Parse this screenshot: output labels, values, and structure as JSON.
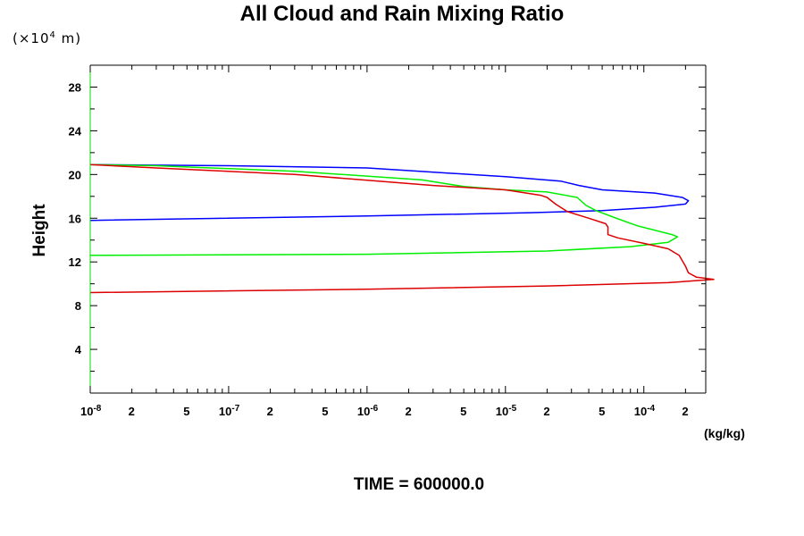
{
  "chart_data": {
    "type": "line",
    "title": "All Cloud and Rain Mixing Ratio",
    "ylabel": "Height",
    "y_unit_prefix": "(×10",
    "y_unit_exponent": "4",
    "y_unit_suffix": " m)",
    "xlabel": "(kg/kg)",
    "footer": "TIME = 600000.0",
    "x_scale": "log",
    "xlim": [
      1e-08,
      0.00028
    ],
    "ylim": [
      0,
      30
    ],
    "y_ticks": [
      {
        "value": 4,
        "label": "4"
      },
      {
        "value": 8,
        "label": "8"
      },
      {
        "value": 12,
        "label": "12"
      },
      {
        "value": 16,
        "label": "16"
      },
      {
        "value": 20,
        "label": "20"
      },
      {
        "value": 24,
        "label": "24"
      },
      {
        "value": 28,
        "label": "28"
      }
    ],
    "x_tick_labels": [
      {
        "value": 1e-08,
        "base": "10",
        "exp": "-8"
      },
      {
        "value": 2e-08,
        "base": "2",
        "exp": ""
      },
      {
        "value": 5e-08,
        "base": "5",
        "exp": ""
      },
      {
        "value": 1e-07,
        "base": "10",
        "exp": "-7"
      },
      {
        "value": 2e-07,
        "base": "2",
        "exp": ""
      },
      {
        "value": 5e-07,
        "base": "5",
        "exp": ""
      },
      {
        "value": 1e-06,
        "base": "10",
        "exp": "-6"
      },
      {
        "value": 2e-06,
        "base": "2",
        "exp": ""
      },
      {
        "value": 5e-06,
        "base": "5",
        "exp": ""
      },
      {
        "value": 1e-05,
        "base": "10",
        "exp": "-5"
      },
      {
        "value": 2e-05,
        "base": "2",
        "exp": ""
      },
      {
        "value": 5e-05,
        "base": "5",
        "exp": ""
      },
      {
        "value": 0.0001,
        "base": "10",
        "exp": "-4"
      },
      {
        "value": 0.0002,
        "base": "2",
        "exp": ""
      }
    ],
    "series": [
      {
        "color": "#0000ff",
        "points": [
          [
            1e-08,
            15.8
          ],
          [
            1e-06,
            16.2
          ],
          [
            1.5e-05,
            16.5
          ],
          [
            5e-05,
            16.7
          ],
          [
            0.00012,
            17.0
          ],
          [
            0.0002,
            17.3
          ],
          [
            0.00021,
            17.6
          ],
          [
            0.00019,
            17.9
          ],
          [
            0.00012,
            18.3
          ],
          [
            5e-05,
            18.6
          ],
          [
            3.4e-05,
            19.0
          ],
          [
            2.5e-05,
            19.4
          ],
          [
            1e-05,
            19.8
          ],
          [
            1e-06,
            20.6
          ],
          [
            1e-07,
            20.8
          ],
          [
            1e-08,
            20.9
          ]
        ]
      },
      {
        "color": "#00ee00",
        "points": [
          [
            1e-08,
            12.6
          ],
          [
            1e-06,
            12.7
          ],
          [
            2e-05,
            13.0
          ],
          [
            8e-05,
            13.4
          ],
          [
            0.00015,
            13.8
          ],
          [
            0.000175,
            14.3
          ],
          [
            0.00016,
            14.5
          ],
          [
            9e-05,
            15.3
          ],
          [
            6e-05,
            16.1
          ],
          [
            4.5e-05,
            16.7
          ],
          [
            3.8e-05,
            17.2
          ],
          [
            3.3e-05,
            17.9
          ],
          [
            2e-05,
            18.4
          ],
          [
            1e-05,
            18.6
          ],
          [
            5e-06,
            18.9
          ],
          [
            2.5e-06,
            19.5
          ],
          [
            3e-07,
            20.3
          ],
          [
            3e-08,
            20.8
          ],
          [
            1e-08,
            20.9
          ]
        ]
      },
      {
        "color": "#dd0000",
        "points": [
          [
            1e-08,
            9.2
          ],
          [
            1e-06,
            9.5
          ],
          [
            2e-05,
            9.8
          ],
          [
            0.00015,
            10.1
          ],
          [
            0.00032,
            10.4
          ],
          [
            0.00024,
            10.6
          ],
          [
            0.00021,
            11.0
          ],
          [
            0.0002,
            11.6
          ],
          [
            0.00018,
            12.6
          ],
          [
            0.00015,
            13.2
          ],
          [
            0.0001,
            13.7
          ],
          [
            6.5e-05,
            14.2
          ],
          [
            5.5e-05,
            14.5
          ],
          [
            5.5e-05,
            15.2
          ],
          [
            5.3e-05,
            15.5
          ],
          [
            4e-05,
            16.0
          ],
          [
            2.8e-05,
            16.6
          ],
          [
            2.3e-05,
            17.3
          ],
          [
            2e-05,
            17.9
          ],
          [
            1.8e-05,
            18.1
          ],
          [
            1e-05,
            18.6
          ],
          [
            3e-06,
            19.0
          ],
          [
            3e-07,
            20.0
          ],
          [
            3e-08,
            20.6
          ],
          [
            1e-08,
            20.9
          ]
        ]
      }
    ]
  }
}
